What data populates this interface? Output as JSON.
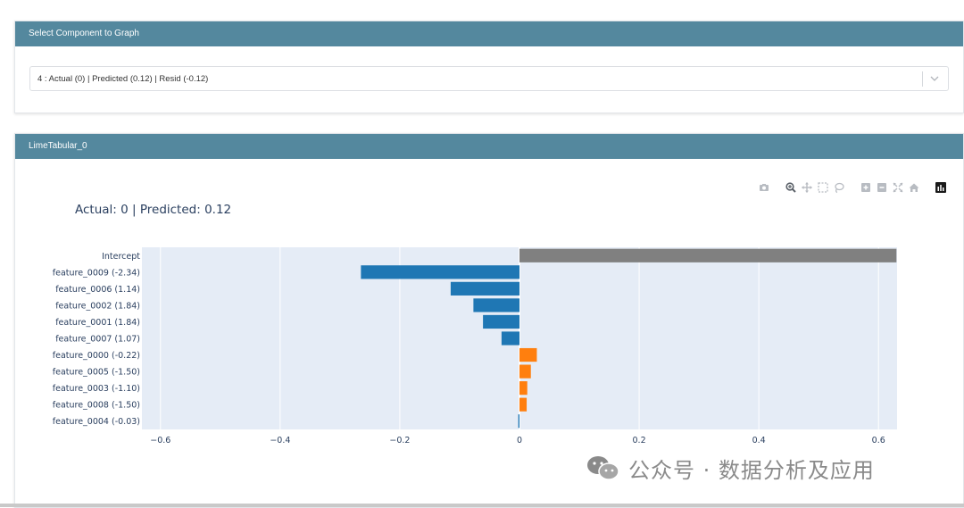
{
  "select_card": {
    "header": "Select Component to Graph",
    "selected_value": "4 : Actual (0) | Predicted (0.12) | Resid (-0.12)"
  },
  "lime_card": {
    "header": "LimeTabular_0",
    "modebar": [
      "camera-icon",
      "zoom-icon",
      "pan-icon",
      "box-select-icon",
      "lasso-select-icon",
      "zoom-in-icon",
      "zoom-out-icon",
      "autoscale-icon",
      "reset-axes-icon",
      "plotly-logo-icon"
    ]
  },
  "chart_data": {
    "type": "bar",
    "orientation": "horizontal",
    "title": "Actual: 0 | Predicted: 0.12",
    "categories": [
      "Intercept",
      "feature_0009 (-2.34)",
      "feature_0006 (1.14)",
      "feature_0002 (1.84)",
      "feature_0001 (1.84)",
      "feature_0007 (1.07)",
      "feature_0000 (-0.22)",
      "feature_0005 (-1.50)",
      "feature_0003 (-1.10)",
      "feature_0008 (-1.50)",
      "feature_0004 (-0.03)"
    ],
    "values": [
      0.63,
      -0.265,
      -0.115,
      -0.077,
      -0.061,
      -0.03,
      0.029,
      0.019,
      0.013,
      0.012,
      -0.002
    ],
    "colors": [
      "#808080",
      "#1f77b4",
      "#1f77b4",
      "#1f77b4",
      "#1f77b4",
      "#1f77b4",
      "#ff7f0e",
      "#ff7f0e",
      "#ff7f0e",
      "#ff7f0e",
      "#1f77b4"
    ],
    "xlim": [
      -0.631,
      0.631
    ],
    "xticks": [
      "−0.6",
      "−0.4",
      "−0.2",
      "0",
      "0.2",
      "0.4",
      "0.6"
    ],
    "xtick_values": [
      -0.6,
      -0.4,
      -0.2,
      0,
      0.2,
      0.4,
      0.6
    ],
    "xlabel": "",
    "ylabel": "",
    "grid": true,
    "plot_bg": "#e5ecf6"
  },
  "watermark": {
    "text": "公众号 · 数据分析及应用"
  }
}
